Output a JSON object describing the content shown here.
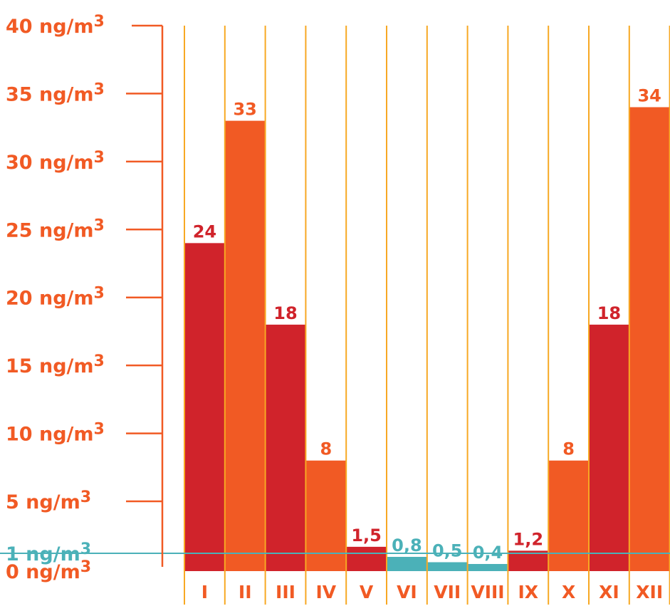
{
  "colors": {
    "orange": "#f15a24",
    "red": "#d0232b",
    "teal": "#4bb1b8",
    "gridline": "#f7a823",
    "axis": "#f15a24"
  },
  "chart_data": {
    "type": "bar",
    "title": "",
    "xlabel": "",
    "ylabel": "",
    "unit": "ng/m",
    "unit_superscript": "3",
    "categories": [
      "I",
      "II",
      "III",
      "IV",
      "V",
      "VI",
      "VII",
      "VIII",
      "IX",
      "X",
      "XI",
      "XII"
    ],
    "values": [
      24,
      33,
      18,
      8,
      1.5,
      0.8,
      0.5,
      0.4,
      1.2,
      8,
      18,
      34
    ],
    "value_labels": [
      "24",
      "33",
      "18",
      "8",
      "1,5",
      "0,8",
      "0,5",
      "0,4",
      "1,2",
      "8",
      "18",
      "34"
    ],
    "bar_colors": [
      "red",
      "orange",
      "red",
      "orange",
      "red",
      "teal",
      "teal",
      "teal",
      "red",
      "orange",
      "red",
      "orange"
    ],
    "y_ticks": [
      {
        "value": 0,
        "label": "0 ng/m",
        "sup": "3"
      },
      {
        "value": 1,
        "label": "1 ng/m",
        "sup": "3"
      },
      {
        "value": 5,
        "label": "5 ng/m",
        "sup": "3"
      },
      {
        "value": 10,
        "label": "10 ng/m",
        "sup": "3"
      },
      {
        "value": 15,
        "label": "15 ng/m",
        "sup": "3"
      },
      {
        "value": 20,
        "label": "20 ng/m",
        "sup": "3"
      },
      {
        "value": 25,
        "label": "25 ng/m",
        "sup": "3"
      },
      {
        "value": 30,
        "label": "30 ng/m",
        "sup": "3"
      },
      {
        "value": 35,
        "label": "35 ng/m",
        "sup": "3"
      },
      {
        "value": 40,
        "label": "40 ng/m",
        "sup": "3"
      }
    ],
    "reference_line": {
      "value": 1,
      "color": "teal"
    },
    "ylim": [
      0,
      40
    ],
    "grid": "vertical",
    "legend": "none"
  }
}
